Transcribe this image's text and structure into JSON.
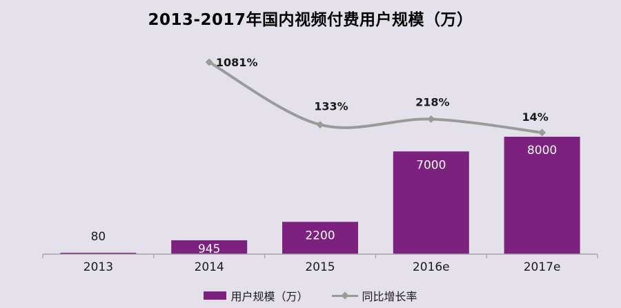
{
  "title": "2013-2017年国内视频付费用户规模（万）",
  "colors": {
    "background": "#E5E1EA",
    "bar": "#7D2181",
    "line": "#9A9A9A",
    "axis": "#A8A6AB",
    "title_text": "#000000",
    "label_text": "#1A1A1A",
    "bar_label_inside": "#FFFFFF"
  },
  "legend": {
    "items": [
      {
        "label": "用户规模（万）",
        "marker": "bar-swatch"
      },
      {
        "label": "同比增长率",
        "marker": "line-swatch"
      }
    ]
  },
  "chart_data": {
    "type": "bar",
    "title": "2013-2017年国内视频付费用户规模（万）",
    "categories": [
      "2013",
      "2014",
      "2015",
      "2016e",
      "2017e"
    ],
    "series": [
      {
        "name": "用户规模（万）",
        "type": "bar",
        "values": [
          80,
          945,
          2200,
          7000,
          8000
        ],
        "labels": [
          "80",
          "945",
          "2200",
          "7000",
          "8000"
        ]
      },
      {
        "name": "同比增长率",
        "type": "line",
        "unit": "%",
        "values": [
          null,
          1081,
          133,
          218,
          14
        ],
        "labels": [
          null,
          "1081%",
          "133%",
          "218%",
          "14%"
        ]
      }
    ],
    "bar_axis": {
      "min": 0,
      "max": 8000,
      "visible": false
    },
    "line_axis": {
      "visible": false
    },
    "grid": false,
    "legend_position": "bottom"
  }
}
